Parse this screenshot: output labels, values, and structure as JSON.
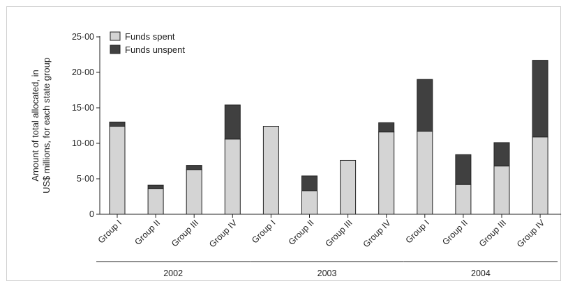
{
  "chart_data": {
    "type": "bar",
    "stacked": true,
    "ylabel_lines": [
      "Amount of total allocated, in",
      "US$ millions, for each state group"
    ],
    "ylim": [
      0,
      25
    ],
    "yticks": [
      0,
      5,
      10,
      15,
      20,
      25
    ],
    "ytick_labels": [
      "0",
      "5·00",
      "10·00",
      "15·00",
      "20·00",
      "25·00"
    ],
    "categories": [
      "Group I",
      "Group II",
      "Group III",
      "Group IV",
      "Group I",
      "Group II",
      "Group III",
      "Group IV",
      "Group I",
      "Group II",
      "Group III",
      "Group IV"
    ],
    "year_groups": [
      {
        "label": "2002",
        "start": 0,
        "end": 3
      },
      {
        "label": "2003",
        "start": 4,
        "end": 7
      },
      {
        "label": "2004",
        "start": 8,
        "end": 11
      }
    ],
    "series": [
      {
        "name": "Funds spent",
        "color": "#d4d4d4",
        "values": [
          12.4,
          3.6,
          6.3,
          10.6,
          12.4,
          3.3,
          7.6,
          11.6,
          11.7,
          4.2,
          6.8,
          10.9
        ]
      },
      {
        "name": "Funds unspent",
        "color": "#404040",
        "values": [
          0.6,
          0.5,
          0.6,
          4.8,
          0,
          2.1,
          0,
          1.3,
          7.3,
          4.2,
          3.3,
          10.8
        ]
      }
    ],
    "legend_position": "top-left"
  }
}
